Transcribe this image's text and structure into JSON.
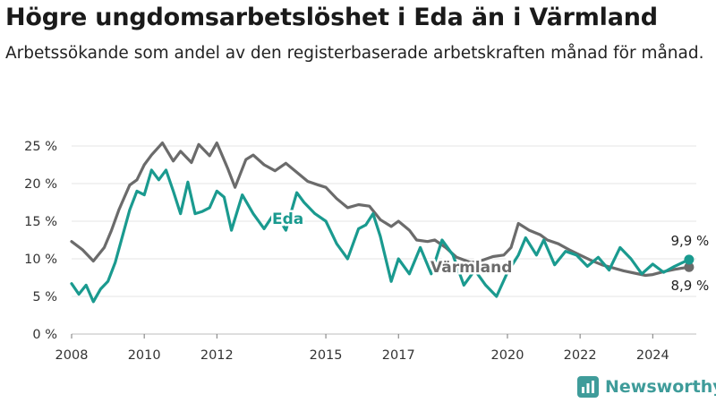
{
  "title": "Högre ungdomsarbetslöshet i Eda än i Värmland",
  "subtitle": "Arbetssökande som andel av den registerbaserade arbetskraften månad för månad.",
  "brand": {
    "name": "Newsworthy",
    "icon": "newsworthy-logo-icon",
    "color": "#3f9c9a"
  },
  "chart_data": {
    "type": "line",
    "title": "Högre ungdomsarbetslöshet i Eda än i Värmland",
    "xlabel": "",
    "ylabel": "",
    "ylim": [
      0,
      25
    ],
    "xlim": [
      2008,
      2025.2
    ],
    "y_ticks": [
      0,
      5,
      10,
      15,
      20,
      25
    ],
    "y_tick_labels": [
      "0 %",
      "5 %",
      "10 %",
      "15 %",
      "20 %",
      "25 %"
    ],
    "x_ticks": [
      2008,
      2010,
      2012,
      2015,
      2017,
      2020,
      2022,
      2024
    ],
    "x_tick_labels": [
      "2008",
      "2010",
      "2012",
      "2015",
      "2017",
      "2020",
      "2022",
      "2024"
    ],
    "grid": true,
    "legend": "none",
    "series": [
      {
        "name": "Värmland",
        "color": "#6b6b6b",
        "x": [
          2008.0,
          2008.3,
          2008.6,
          2008.9,
          2009.1,
          2009.3,
          2009.6,
          2009.8,
          2010.0,
          2010.2,
          2010.5,
          2010.8,
          2011.0,
          2011.3,
          2011.5,
          2011.8,
          2012.0,
          2012.3,
          2012.5,
          2012.8,
          2013.0,
          2013.3,
          2013.6,
          2013.9,
          2014.2,
          2014.5,
          2014.8,
          2015.0,
          2015.3,
          2015.6,
          2015.9,
          2016.2,
          2016.5,
          2016.8,
          2017.0,
          2017.3,
          2017.5,
          2017.8,
          2018.0,
          2018.3,
          2018.6,
          2019.0,
          2019.3,
          2019.6,
          2019.9,
          2020.1,
          2020.3,
          2020.6,
          2020.9,
          2021.1,
          2021.4,
          2021.7,
          2022.0,
          2022.3,
          2022.6,
          2022.9,
          2023.2,
          2023.5,
          2023.8,
          2024.0,
          2024.3,
          2024.6,
          2025.0
        ],
        "y": [
          12.3,
          11.2,
          9.7,
          11.5,
          13.8,
          16.5,
          19.8,
          20.5,
          22.5,
          23.8,
          25.4,
          23.0,
          24.3,
          22.8,
          25.2,
          23.7,
          25.4,
          22.0,
          19.5,
          23.2,
          23.8,
          22.5,
          21.7,
          22.7,
          21.5,
          20.3,
          19.8,
          19.5,
          18.0,
          16.8,
          17.2,
          17.0,
          15.2,
          14.3,
          15.0,
          13.8,
          12.5,
          12.3,
          12.5,
          11.5,
          10.2,
          9.5,
          9.8,
          10.3,
          10.5,
          11.5,
          14.7,
          13.8,
          13.2,
          12.5,
          12.0,
          11.2,
          10.5,
          9.8,
          9.2,
          8.8,
          8.4,
          8.1,
          7.8,
          7.9,
          8.3,
          8.6,
          8.9
        ]
      },
      {
        "name": "Eda",
        "color": "#1a9a8f",
        "x": [
          2008.0,
          2008.2,
          2008.4,
          2008.6,
          2008.8,
          2009.0,
          2009.2,
          2009.4,
          2009.6,
          2009.8,
          2010.0,
          2010.2,
          2010.4,
          2010.6,
          2010.8,
          2011.0,
          2011.2,
          2011.4,
          2011.6,
          2011.8,
          2012.0,
          2012.2,
          2012.4,
          2012.7,
          2013.0,
          2013.3,
          2013.6,
          2013.9,
          2014.2,
          2014.4,
          2014.7,
          2015.0,
          2015.3,
          2015.6,
          2015.9,
          2016.1,
          2016.3,
          2016.5,
          2016.8,
          2017.0,
          2017.3,
          2017.6,
          2017.9,
          2018.2,
          2018.5,
          2018.8,
          2019.1,
          2019.4,
          2019.7,
          2020.0,
          2020.3,
          2020.5,
          2020.8,
          2021.0,
          2021.3,
          2021.6,
          2021.9,
          2022.2,
          2022.5,
          2022.8,
          2023.1,
          2023.4,
          2023.7,
          2024.0,
          2024.3,
          2024.6,
          2025.0
        ],
        "y": [
          6.7,
          5.3,
          6.5,
          4.3,
          6.0,
          7.0,
          9.5,
          13.0,
          16.5,
          19.0,
          18.5,
          21.8,
          20.5,
          21.8,
          19.0,
          16.0,
          20.2,
          16.0,
          16.3,
          16.8,
          19.0,
          18.2,
          13.8,
          18.5,
          16.0,
          14.0,
          16.2,
          13.8,
          18.8,
          17.5,
          16.0,
          15.0,
          12.0,
          10.0,
          14.0,
          14.5,
          16.0,
          13.0,
          7.0,
          10.0,
          8.0,
          11.5,
          8.0,
          12.5,
          10.5,
          6.5,
          8.5,
          6.5,
          5.0,
          8.2,
          10.5,
          12.8,
          10.5,
          12.5,
          9.2,
          11.0,
          10.5,
          9.0,
          10.2,
          8.5,
          11.5,
          10.0,
          8.0,
          9.3,
          8.2,
          9.0,
          9.9
        ]
      }
    ],
    "annotations": [
      {
        "text": "Eda",
        "series": "Eda",
        "color": "#1a9a8f"
      },
      {
        "text": "Värmland",
        "series": "Värmland",
        "color": "#6b6b6b"
      },
      {
        "text": "9,9 %",
        "series": "Eda",
        "x": 2025.0,
        "y": 9.9
      },
      {
        "text": "8,9 %",
        "series": "Värmland",
        "x": 2025.0,
        "y": 8.9
      }
    ]
  }
}
